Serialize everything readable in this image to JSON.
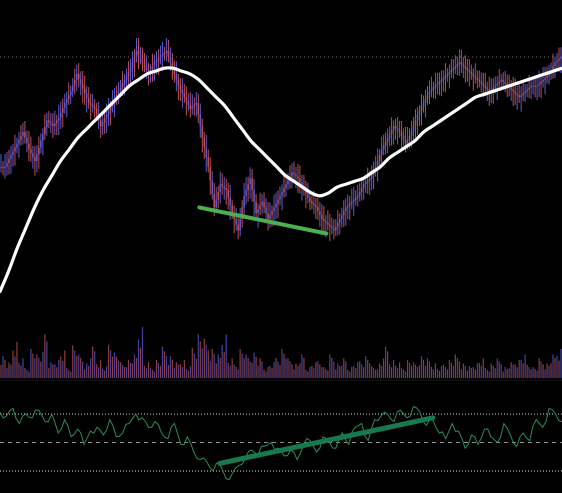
{
  "chart_data": {
    "type": "candlestick",
    "title": "",
    "grid": false,
    "colors": {
      "background": "#000000",
      "bull": "#5b5bd6",
      "bear": "#c0504d",
      "ma": "#ffffff",
      "divergence_price": "#4caf50",
      "divergence_osc": "#177a4e",
      "oscillator": "#2e8b57",
      "ref_line": "#d8d8d8",
      "mid_line": "#8f8f8f"
    },
    "price_panel": {
      "ylim": [
        0,
        100
      ],
      "close": [
        58,
        62,
        66,
        70,
        64,
        60,
        67,
        74,
        72,
        75,
        80,
        84,
        90,
        85,
        80,
        78,
        72,
        76,
        80,
        84,
        88,
        92,
        98,
        94,
        90,
        94,
        96,
        98,
        92,
        86,
        82,
        78,
        80,
        68,
        58,
        44,
        52,
        50,
        42,
        36,
        48,
        54,
        42,
        46,
        40,
        44,
        48,
        52,
        56,
        54,
        50,
        46,
        44,
        40,
        38,
        36,
        40,
        44,
        46,
        48,
        52,
        54,
        58,
        64,
        68,
        72,
        70,
        66,
        70,
        76,
        80,
        84,
        86,
        88,
        90,
        92,
        94,
        92,
        90,
        88,
        86,
        84,
        86,
        88,
        86,
        84,
        82,
        84,
        86,
        86,
        88,
        90,
        94,
        96
      ],
      "ma": [
        15,
        22,
        30,
        37,
        44,
        50,
        55,
        60,
        64,
        68,
        71,
        74,
        77,
        80,
        83,
        86,
        88,
        90,
        91,
        92,
        92,
        91,
        90,
        88,
        85,
        82,
        79,
        75,
        71,
        67,
        64,
        61,
        58,
        55,
        53,
        51,
        49,
        48,
        49,
        51,
        52,
        53,
        54,
        56,
        58,
        61,
        63,
        65,
        67,
        70,
        72,
        74,
        76,
        78,
        80,
        82,
        83,
        84,
        85,
        86,
        87,
        88,
        89,
        90,
        91,
        92
      ],
      "divergence_line": [
        [
          33,
          44
        ],
        [
          54,
          35
        ]
      ]
    },
    "volume": [
      6,
      4,
      10,
      5,
      3,
      8,
      6,
      12,
      4,
      5,
      7,
      3,
      9,
      6,
      4,
      8,
      5,
      3,
      10,
      7,
      4,
      5,
      6,
      14,
      4,
      3,
      5,
      8,
      6,
      4,
      5,
      3,
      9,
      12,
      10,
      8,
      6,
      12,
      5,
      4,
      8,
      6,
      7,
      5,
      3,
      4,
      6,
      8,
      5,
      4,
      6,
      3,
      4,
      5,
      3,
      6,
      4,
      5,
      3,
      4,
      5,
      6,
      3,
      4,
      8,
      5,
      4,
      3,
      5,
      4,
      6,
      5,
      4,
      3,
      4,
      5,
      6,
      4,
      3,
      4,
      5,
      3,
      4,
      5,
      3,
      4,
      5,
      6,
      4,
      3,
      5,
      4,
      6,
      8
    ],
    "oscillator": {
      "ylim": [
        0,
        100
      ],
      "reference_levels": [
        80,
        50,
        20
      ],
      "values": [
        82,
        78,
        86,
        70,
        80,
        76,
        84,
        72,
        80,
        60,
        74,
        56,
        64,
        48,
        62,
        66,
        58,
        74,
        56,
        60,
        70,
        80,
        76,
        66,
        72,
        60,
        54,
        70,
        48,
        56,
        40,
        32,
        30,
        20,
        28,
        12,
        18,
        26,
        34,
        42,
        38,
        46,
        50,
        44,
        36,
        42,
        32,
        48,
        52,
        40,
        56,
        50,
        44,
        60,
        48,
        66,
        70,
        52,
        74,
        78,
        80,
        72,
        84,
        76,
        88,
        82,
        68,
        74,
        60,
        54,
        70,
        62,
        44,
        58,
        48,
        64,
        56,
        50,
        70,
        58,
        46,
        60,
        52,
        74,
        66,
        86,
        80,
        72
      ],
      "divergence_line": [
        [
          34,
          28
        ],
        [
          67,
          76
        ]
      ]
    }
  }
}
